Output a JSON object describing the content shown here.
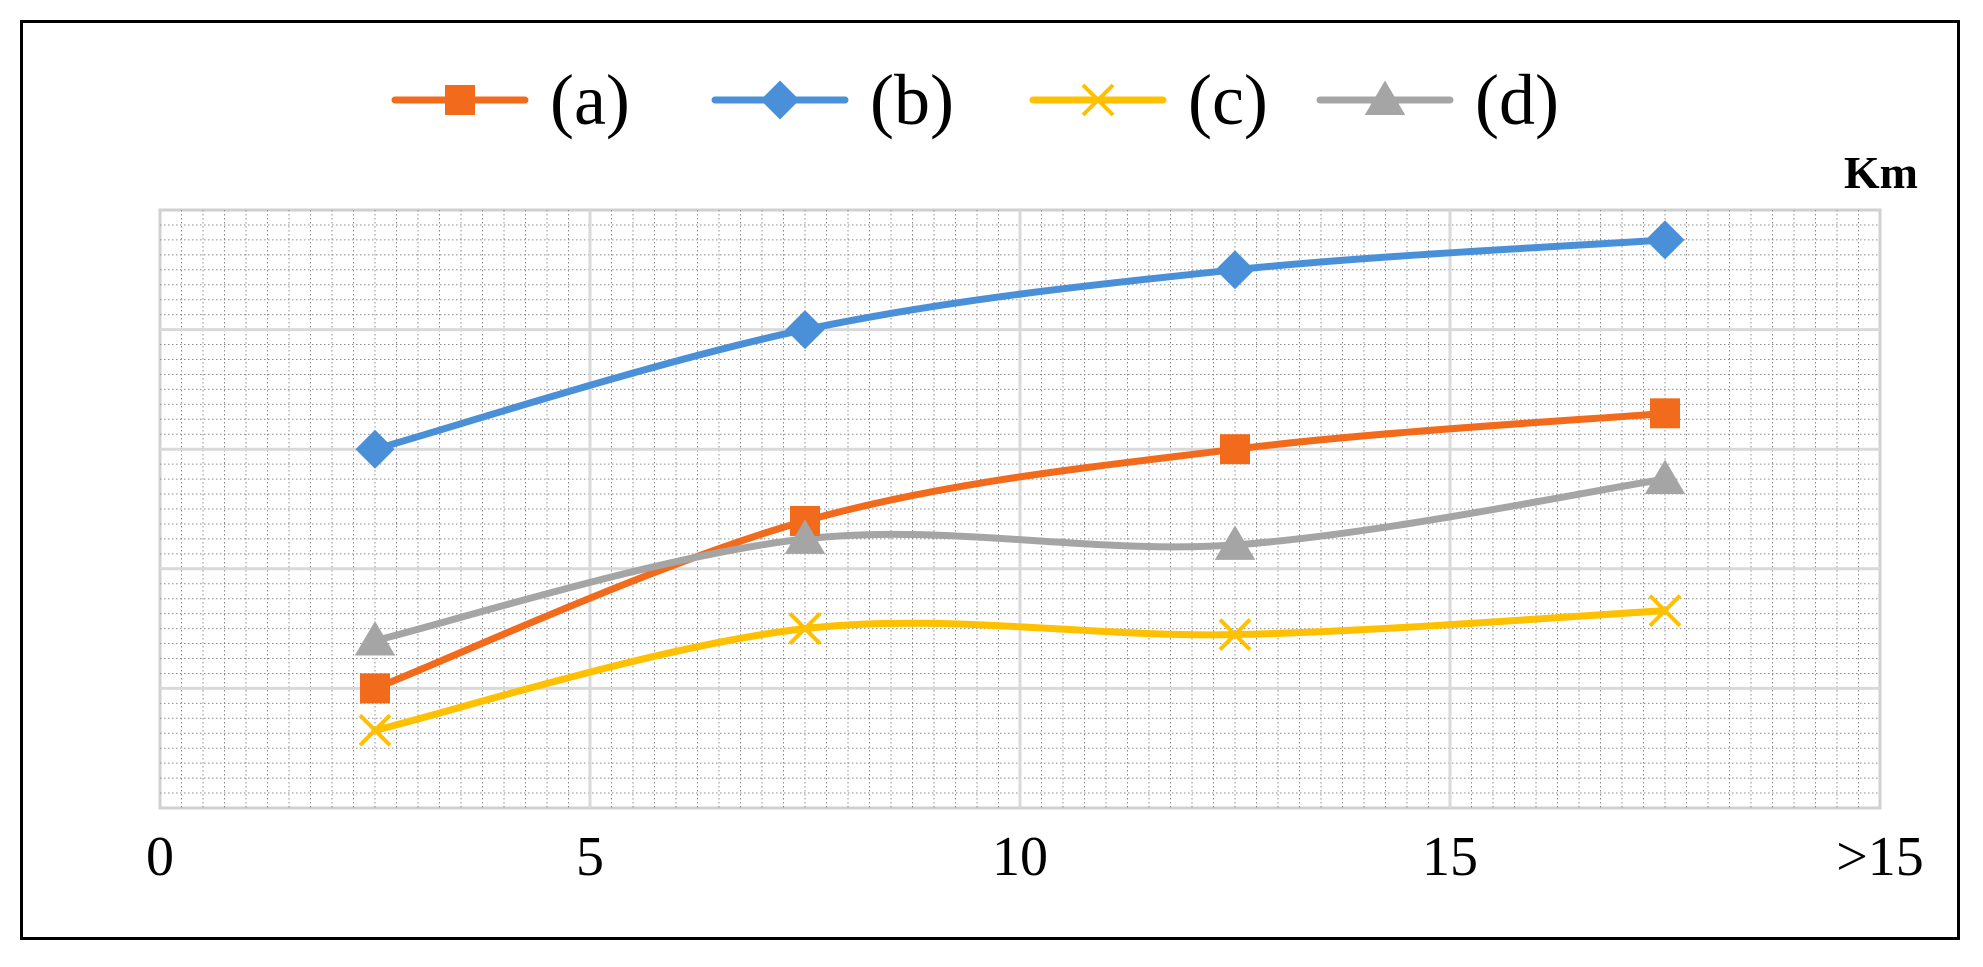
{
  "chart_data": {
    "type": "line",
    "x": [
      2.5,
      7.5,
      12.5,
      17.5
    ],
    "xlim": [
      0,
      20
    ],
    "x_ticks": [
      "0",
      "5",
      "10",
      "15",
      ">15"
    ],
    "x_unit_label": "Km",
    "ylim": [
      0,
      5
    ],
    "grid": "on (major and minor gridlines)",
    "legend_placement": "top",
    "series": [
      {
        "name": "(a)",
        "color": "#F26B1D",
        "marker": "square",
        "values": [
          1.0,
          2.4,
          3.0,
          3.3
        ]
      },
      {
        "name": "(b)",
        "color": "#4A90D9",
        "marker": "diamond",
        "values": [
          3.0,
          4.0,
          4.5,
          4.75
        ]
      },
      {
        "name": "(c)",
        "color": "#FFC000",
        "marker": "x",
        "values": [
          0.65,
          1.5,
          1.45,
          1.65
        ]
      },
      {
        "name": "(d)",
        "color": "#A5A5A5",
        "marker": "triangle",
        "values": [
          1.4,
          2.25,
          2.2,
          2.75
        ]
      }
    ]
  }
}
